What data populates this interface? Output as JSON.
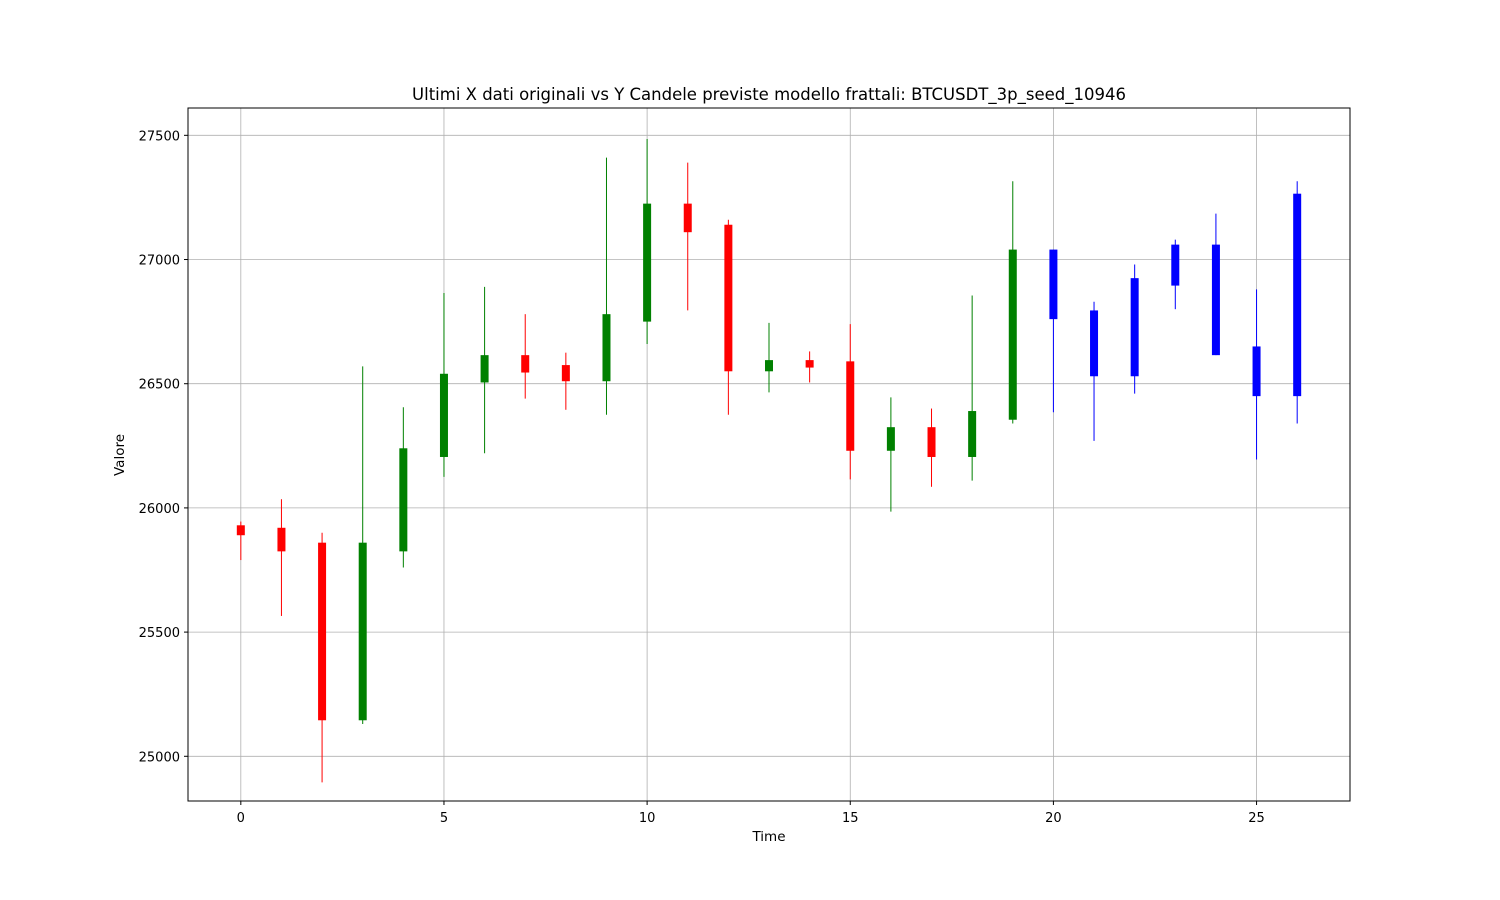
{
  "chart_data": {
    "type": "candlestick",
    "title": "Ultimi X dati originali vs Y Candele previste modello frattali: BTCUSDT_3p_seed_10946",
    "xlabel": "Time",
    "ylabel": "Valore",
    "xlim": [
      -1.3,
      27.3
    ],
    "ylim": [
      24820,
      27610
    ],
    "xticks": [
      0,
      5,
      10,
      15,
      20,
      25
    ],
    "yticks": [
      25000,
      25500,
      26000,
      26500,
      27000,
      27500
    ],
    "grid": true,
    "colors": {
      "up": "#008000",
      "down": "#ff0000",
      "predicted": "#0000ff"
    },
    "candles": [
      {
        "t": 0,
        "open": 25930,
        "high": 25945,
        "low": 25790,
        "close": 25890,
        "kind": "down"
      },
      {
        "t": 1,
        "open": 25920,
        "high": 26035,
        "low": 25565,
        "close": 25825,
        "kind": "down"
      },
      {
        "t": 2,
        "open": 25860,
        "high": 25900,
        "low": 24895,
        "close": 25145,
        "kind": "down"
      },
      {
        "t": 3,
        "open": 25145,
        "high": 26570,
        "low": 25130,
        "close": 25860,
        "kind": "up"
      },
      {
        "t": 4,
        "open": 25825,
        "high": 26405,
        "low": 25760,
        "close": 26240,
        "kind": "up"
      },
      {
        "t": 5,
        "open": 26205,
        "high": 26865,
        "low": 26125,
        "close": 26540,
        "kind": "up"
      },
      {
        "t": 6,
        "open": 26505,
        "high": 26890,
        "low": 26220,
        "close": 26615,
        "kind": "up"
      },
      {
        "t": 7,
        "open": 26615,
        "high": 26780,
        "low": 26440,
        "close": 26545,
        "kind": "down"
      },
      {
        "t": 8,
        "open": 26575,
        "high": 26625,
        "low": 26395,
        "close": 26510,
        "kind": "down"
      },
      {
        "t": 9,
        "open": 26510,
        "high": 27410,
        "low": 26375,
        "close": 26780,
        "kind": "up"
      },
      {
        "t": 10,
        "open": 26750,
        "high": 27485,
        "low": 26660,
        "close": 27225,
        "kind": "up"
      },
      {
        "t": 11,
        "open": 27225,
        "high": 27390,
        "low": 26795,
        "close": 27110,
        "kind": "down"
      },
      {
        "t": 12,
        "open": 27140,
        "high": 27160,
        "low": 26375,
        "close": 26550,
        "kind": "down"
      },
      {
        "t": 13,
        "open": 26550,
        "high": 26745,
        "low": 26465,
        "close": 26595,
        "kind": "up"
      },
      {
        "t": 14,
        "open": 26595,
        "high": 26630,
        "low": 26505,
        "close": 26565,
        "kind": "down"
      },
      {
        "t": 15,
        "open": 26590,
        "high": 26740,
        "low": 26115,
        "close": 26230,
        "kind": "down"
      },
      {
        "t": 16,
        "open": 26230,
        "high": 26445,
        "low": 25985,
        "close": 26325,
        "kind": "up"
      },
      {
        "t": 17,
        "open": 26325,
        "high": 26400,
        "low": 26085,
        "close": 26205,
        "kind": "down"
      },
      {
        "t": 18,
        "open": 26205,
        "high": 26855,
        "low": 26110,
        "close": 26390,
        "kind": "up"
      },
      {
        "t": 19,
        "open": 26355,
        "high": 27315,
        "low": 26340,
        "close": 27040,
        "kind": "up"
      },
      {
        "t": 20,
        "open": 27040,
        "high": 27040,
        "low": 26385,
        "close": 26760,
        "kind": "predicted"
      },
      {
        "t": 21,
        "open": 26795,
        "high": 26830,
        "low": 26270,
        "close": 26530,
        "kind": "predicted"
      },
      {
        "t": 22,
        "open": 26530,
        "high": 26980,
        "low": 26460,
        "close": 26925,
        "kind": "predicted"
      },
      {
        "t": 23,
        "open": 26895,
        "high": 27080,
        "low": 26800,
        "close": 27060,
        "kind": "predicted"
      },
      {
        "t": 24,
        "open": 27060,
        "high": 27185,
        "low": 26615,
        "close": 26615,
        "kind": "predicted"
      },
      {
        "t": 25,
        "open": 26650,
        "high": 26880,
        "low": 26195,
        "close": 26450,
        "kind": "predicted"
      },
      {
        "t": 26,
        "open": 26450,
        "high": 27315,
        "low": 26340,
        "close": 27265,
        "kind": "predicted"
      }
    ]
  }
}
